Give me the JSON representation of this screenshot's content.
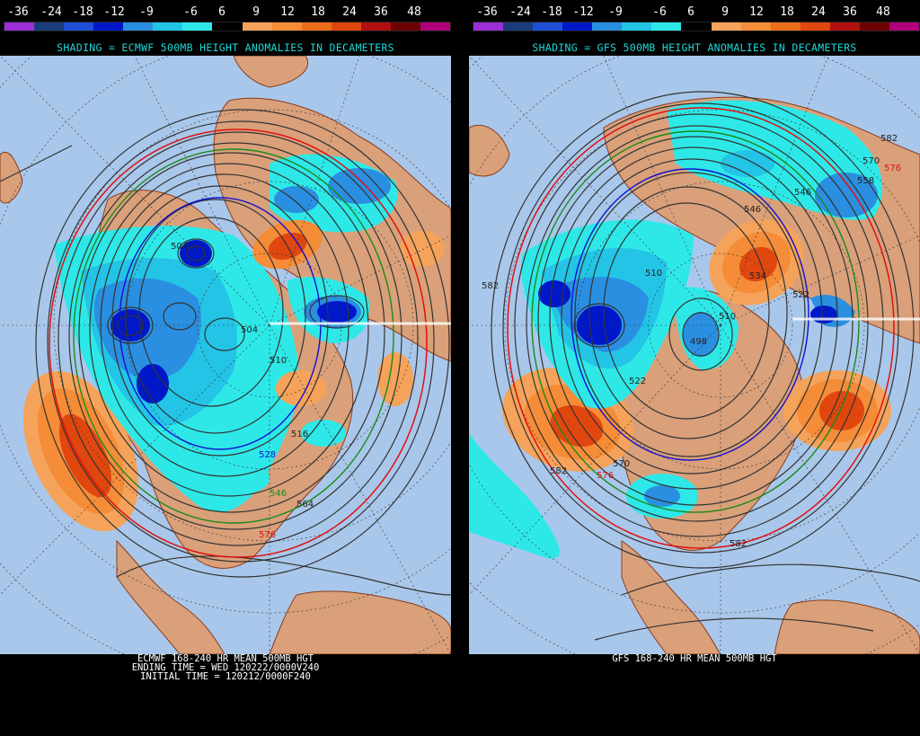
{
  "colorbar": {
    "ticks": [
      "-36",
      "-24",
      "-18",
      "-12",
      "-9",
      "-6",
      "6",
      "9",
      "12",
      "18",
      "24",
      "36",
      "48"
    ],
    "colors": [
      "#9b2fd6",
      "#1a3b7c",
      "#1f4fd6",
      "#0018c8",
      "#2a8fe0",
      "#23c4e6",
      "#2ee8e8",
      "#000000",
      "#f5a35a",
      "#f58c37",
      "#ec6e1a",
      "#e0470f",
      "#b01010",
      "#6d0000",
      "#b0007a"
    ]
  },
  "left": {
    "shading_title": "SHADING = ECMWF 500MB HEIGHT ANOMALIES IN DECAMETERS",
    "footer": [
      "ECMWF 168-240 HR MEAN 500MB HGT",
      "ENDING TIME = WED 120222/0000V240",
      "INITIAL TIME = 120212/0000F240"
    ],
    "contour_labels": [
      {
        "text": "504",
        "color": "#222222"
      },
      {
        "text": "504",
        "color": "#222222"
      },
      {
        "text": "510",
        "color": "#222222"
      },
      {
        "text": "528",
        "color": "#1010d0"
      },
      {
        "text": "516",
        "color": "#222222"
      },
      {
        "text": "564",
        "color": "#222222"
      },
      {
        "text": "576",
        "color": "#e01010"
      },
      {
        "text": "546",
        "color": "#1a8a1a"
      }
    ]
  },
  "right": {
    "shading_title": "SHADING = GFS 500MB HEIGHT ANOMALIES IN DECAMETERS",
    "footer": [
      "GFS 168-240 HR MEAN 500MB HGT"
    ],
    "contour_labels": [
      {
        "text": "582",
        "color": "#222222"
      },
      {
        "text": "570",
        "color": "#222222"
      },
      {
        "text": "576",
        "color": "#e01010"
      },
      {
        "text": "558",
        "color": "#222222"
      },
      {
        "text": "546",
        "color": "#222222"
      },
      {
        "text": "546",
        "color": "#222222"
      },
      {
        "text": "534",
        "color": "#222222"
      },
      {
        "text": "510",
        "color": "#222222"
      },
      {
        "text": "522",
        "color": "#222222"
      },
      {
        "text": "498",
        "color": "#222222"
      },
      {
        "text": "510",
        "color": "#222222"
      },
      {
        "text": "522",
        "color": "#222222"
      },
      {
        "text": "582",
        "color": "#222222"
      },
      {
        "text": "582",
        "color": "#222222"
      },
      {
        "text": "570",
        "color": "#222222"
      },
      {
        "text": "576",
        "color": "#e01010"
      },
      {
        "text": "582",
        "color": "#222222"
      }
    ]
  }
}
